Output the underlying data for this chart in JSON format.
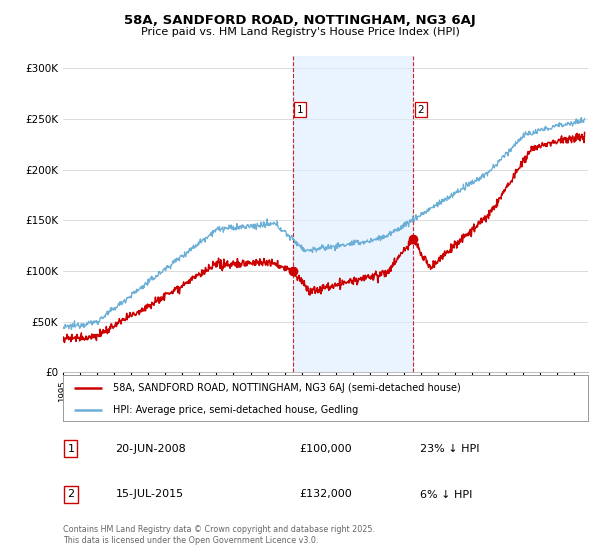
{
  "title1": "58A, SANDFORD ROAD, NOTTINGHAM, NG3 6AJ",
  "title2": "Price paid vs. HM Land Registry's House Price Index (HPI)",
  "ylabel_ticks": [
    "£0",
    "£50K",
    "£100K",
    "£150K",
    "£200K",
    "£250K",
    "£300K"
  ],
  "ytick_vals": [
    0,
    50000,
    100000,
    150000,
    200000,
    250000,
    300000
  ],
  "ylim": [
    0,
    312000
  ],
  "xlim_start": 1995.0,
  "xlim_end": 2025.8,
  "sale1_x": 2008.47,
  "sale1_y": 100000,
  "sale2_x": 2015.54,
  "sale2_y": 132000,
  "sale1_label": "1",
  "sale2_label": "2",
  "legend1": "58A, SANDFORD ROAD, NOTTINGHAM, NG3 6AJ (semi-detached house)",
  "legend2": "HPI: Average price, semi-detached house, Gedling",
  "table_row1": [
    "1",
    "20-JUN-2008",
    "£100,000",
    "23% ↓ HPI"
  ],
  "table_row2": [
    "2",
    "15-JUL-2015",
    "£132,000",
    "6% ↓ HPI"
  ],
  "footer": "Contains HM Land Registry data © Crown copyright and database right 2025.\nThis data is licensed under the Open Government Licence v3.0.",
  "hpi_color": "#6baed6",
  "price_color": "#cc0000",
  "shade_color": "#ddeeff",
  "vline_color": "#cc0000",
  "grid_color": "#cccccc",
  "background_color": "#ffffff"
}
